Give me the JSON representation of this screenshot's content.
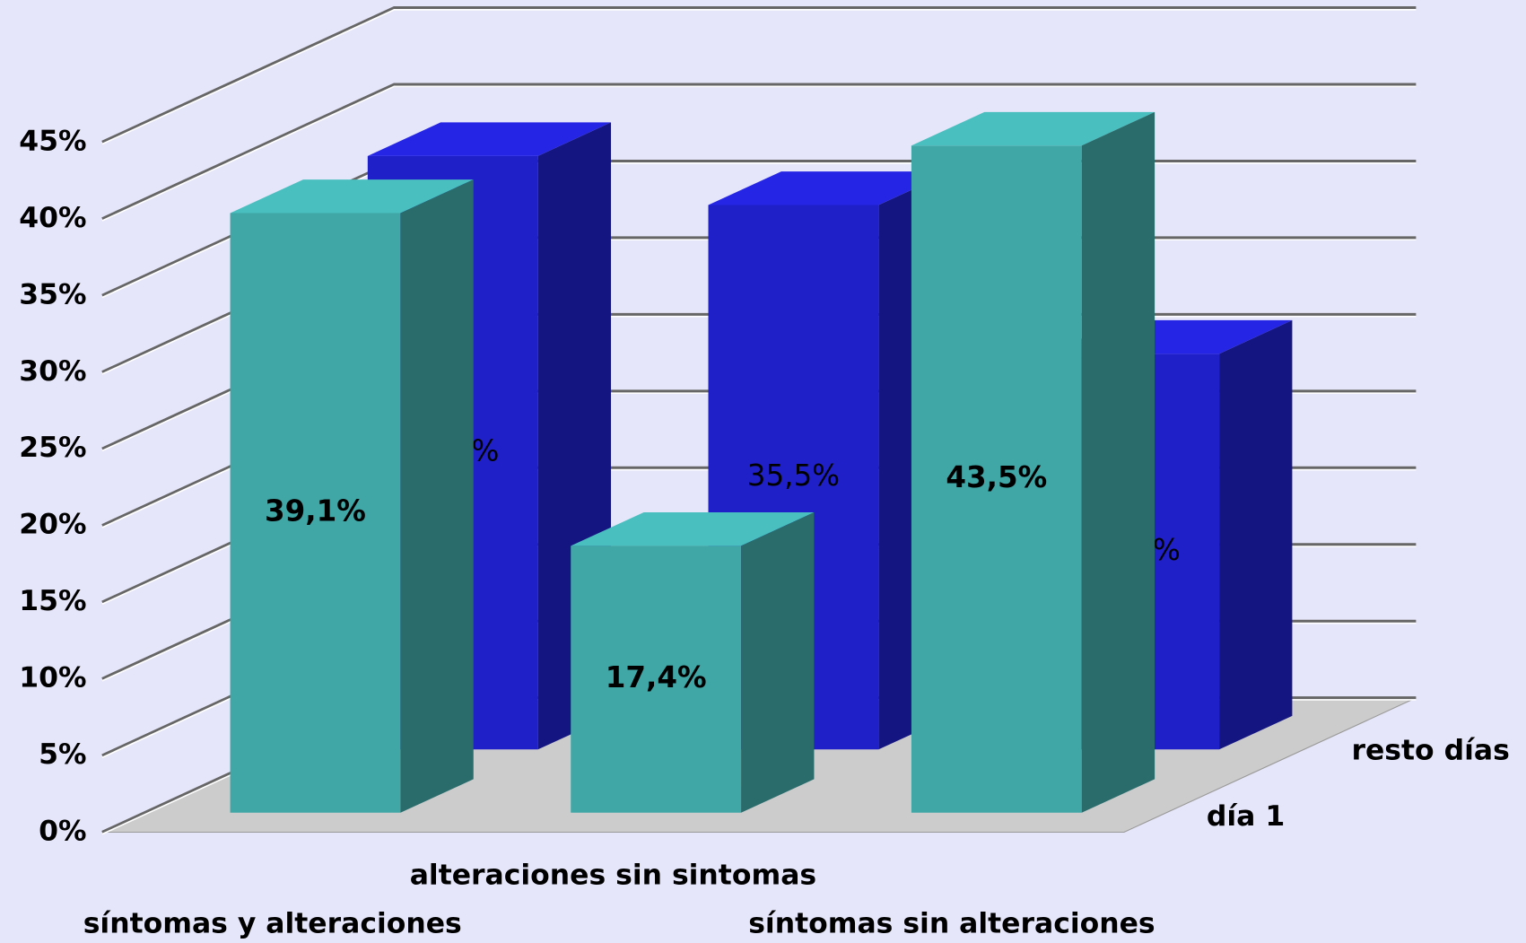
{
  "chart_data": {
    "type": "bar3d",
    "categories": [
      "síntomas y alteraciones",
      "alteraciones sin sintomas",
      "síntomas sin alteraciones"
    ],
    "series": [
      {
        "name": "día 1",
        "color": "#40a6a6",
        "values": [
          39.1,
          17.4,
          43.5
        ],
        "value_labels": [
          "39,1%",
          "17,4%",
          "43,5%"
        ]
      },
      {
        "name": "resto días",
        "color": "#2020c8",
        "values": [
          38.7,
          35.5,
          25.8
        ],
        "value_labels": [
          "38,7%",
          "35,5%",
          "25,8%"
        ]
      }
    ],
    "ylim": [
      0,
      45
    ],
    "yticks": [
      {
        "value": 0,
        "label": "0%"
      },
      {
        "value": 5,
        "label": "5%"
      },
      {
        "value": 10,
        "label": "10%"
      },
      {
        "value": 15,
        "label": "15%"
      },
      {
        "value": 20,
        "label": "20%"
      },
      {
        "value": 25,
        "label": "25%"
      },
      {
        "value": 30,
        "label": "30%"
      },
      {
        "value": 35,
        "label": "35%"
      },
      {
        "value": 40,
        "label": "40%"
      },
      {
        "value": 45,
        "label": "45%"
      }
    ],
    "grid": true
  }
}
